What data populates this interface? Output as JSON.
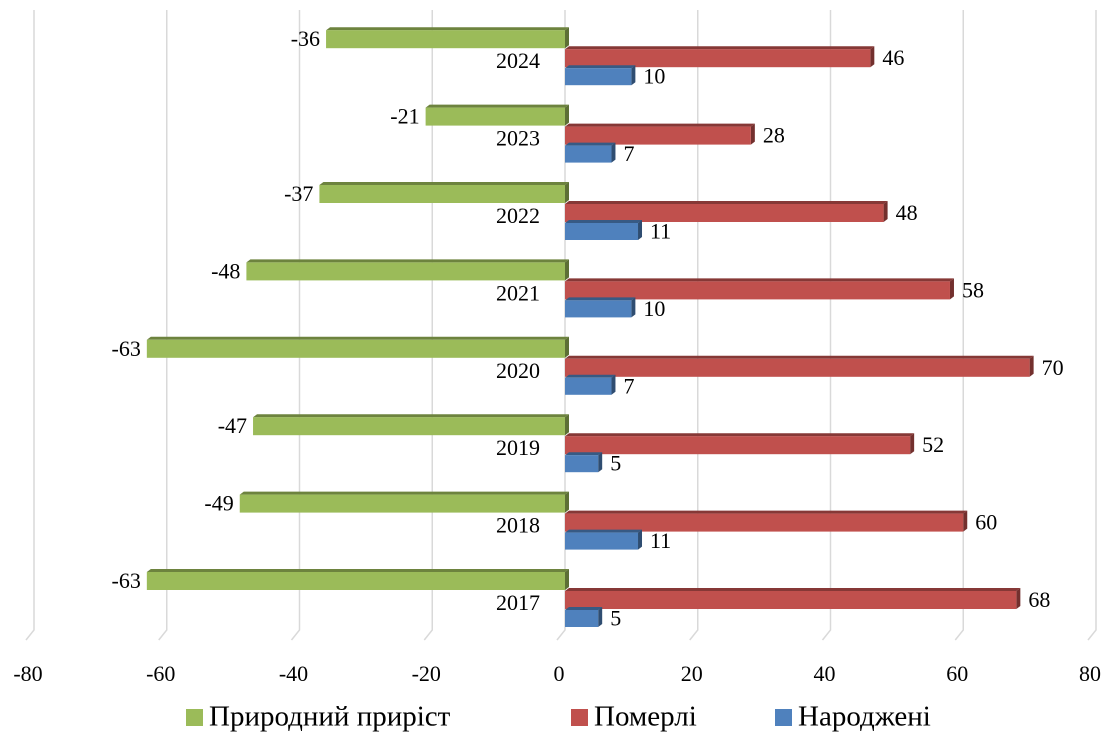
{
  "chart_data": {
    "type": "bar",
    "orientation": "horizontal",
    "categories": [
      "2017",
      "2018",
      "2019",
      "2020",
      "2021",
      "2022",
      "2023",
      "2024"
    ],
    "series": [
      {
        "name": "Природний приріст",
        "color": "#9bbb59",
        "values": [
          -63,
          -49,
          -47,
          -63,
          -48,
          -37,
          -21,
          -36
        ]
      },
      {
        "name": "Померлі",
        "color": "#c0504d",
        "values": [
          68,
          60,
          52,
          70,
          58,
          48,
          28,
          46
        ]
      },
      {
        "name": "Народжені",
        "color": "#4f81bd",
        "values": [
          5,
          11,
          5,
          7,
          10,
          11,
          7,
          10
        ]
      }
    ],
    "xlim": [
      -80,
      80
    ],
    "xticks": [
      -80,
      -60,
      -40,
      -20,
      0,
      20,
      40,
      60,
      80
    ],
    "grid": true,
    "legend": "bottom"
  }
}
